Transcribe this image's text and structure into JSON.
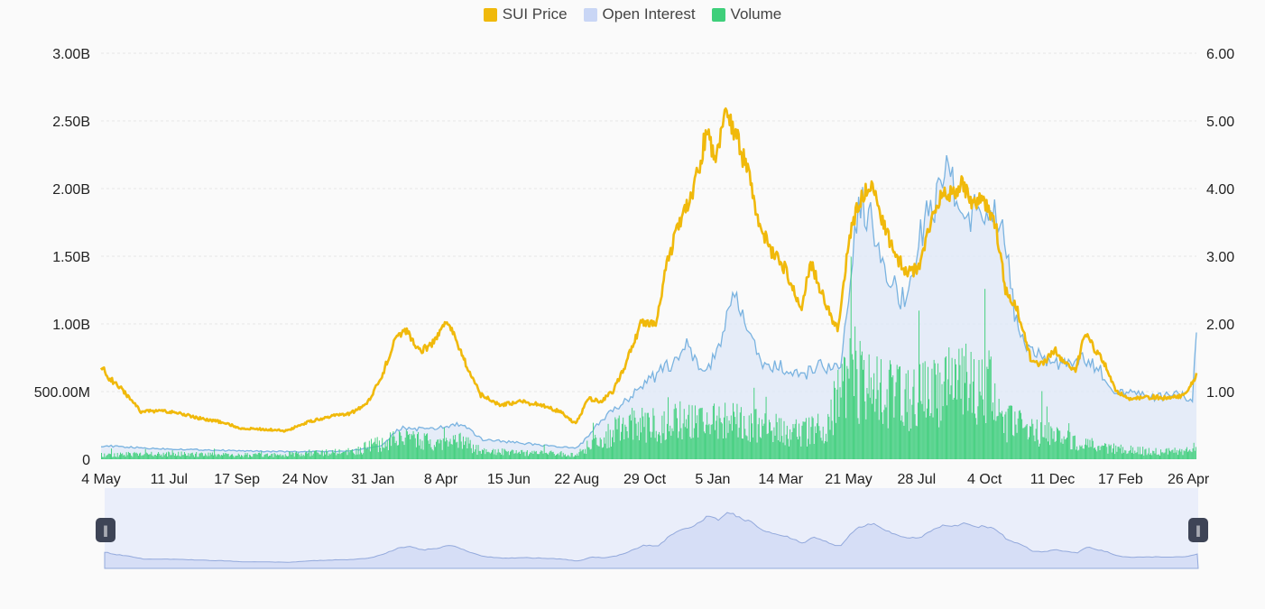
{
  "legend": {
    "price": {
      "label": "SUI Price",
      "color": "#f0b90b"
    },
    "oi": {
      "label": "Open Interest",
      "color": "#c9d6f5"
    },
    "volume": {
      "label": "Volume",
      "color": "#3ecf7a"
    }
  },
  "chart_data": {
    "type": "line",
    "legend_position": "top-center",
    "grid": true,
    "y_left": {
      "ylim": [
        0,
        3000000000
      ],
      "ticks": [
        0,
        500000000,
        1000000000,
        1500000000,
        2000000000,
        2500000000,
        3000000000
      ],
      "tick_labels": [
        "0",
        "500.00M",
        "1.00B",
        "1.50B",
        "2.00B",
        "2.50B",
        "3.00B"
      ]
    },
    "y_right": {
      "ylim": [
        0,
        6
      ],
      "ticks": [
        1,
        2,
        3,
        4,
        5,
        6
      ],
      "tick_labels": [
        "1.00",
        "2.00",
        "3.00",
        "4.00",
        "5.00",
        "6.00"
      ]
    },
    "x_tick_labels": [
      "4 May",
      "11 Jul",
      "17 Sep",
      "24 Nov",
      "31 Jan",
      "8 Apr",
      "15 Jun",
      "22 Aug",
      "29 Oct",
      "5 Jan",
      "14 Mar",
      "21 May",
      "28 Jul",
      "4 Oct",
      "11 Dec",
      "17 Feb",
      "26 Apr"
    ],
    "x_tick_steps": [
      0,
      68,
      136,
      204,
      272,
      340,
      408,
      476,
      544,
      612,
      680,
      748,
      816,
      884,
      952,
      1020,
      1088
    ],
    "x_total_steps": 1096,
    "series": [
      {
        "name": "SUI Price",
        "axis": "right",
        "type": "line",
        "color": "#f0b90b",
        "points": [
          [
            0,
            1.4
          ],
          [
            8,
            1.2
          ],
          [
            20,
            1.05
          ],
          [
            40,
            0.7
          ],
          [
            60,
            0.72
          ],
          [
            80,
            0.68
          ],
          [
            100,
            0.6
          ],
          [
            120,
            0.55
          ],
          [
            140,
            0.46
          ],
          [
            165,
            0.44
          ],
          [
            185,
            0.42
          ],
          [
            205,
            0.54
          ],
          [
            225,
            0.62
          ],
          [
            250,
            0.68
          ],
          [
            265,
            0.8
          ],
          [
            280,
            1.2
          ],
          [
            295,
            1.78
          ],
          [
            305,
            1.9
          ],
          [
            320,
            1.6
          ],
          [
            335,
            1.75
          ],
          [
            345,
            2.05
          ],
          [
            355,
            1.8
          ],
          [
            365,
            1.4
          ],
          [
            380,
            0.95
          ],
          [
            400,
            0.8
          ],
          [
            420,
            0.85
          ],
          [
            440,
            0.8
          ],
          [
            460,
            0.7
          ],
          [
            475,
            0.52
          ],
          [
            488,
            0.9
          ],
          [
            500,
            0.85
          ],
          [
            512,
            1.0
          ],
          [
            525,
            1.4
          ],
          [
            540,
            2.0
          ],
          [
            555,
            2.0
          ],
          [
            565,
            2.8
          ],
          [
            578,
            3.5
          ],
          [
            592,
            3.9
          ],
          [
            605,
            4.8
          ],
          [
            615,
            4.5
          ],
          [
            625,
            5.1
          ],
          [
            635,
            4.8
          ],
          [
            648,
            4.2
          ],
          [
            658,
            3.5
          ],
          [
            670,
            3.1
          ],
          [
            685,
            2.8
          ],
          [
            700,
            2.2
          ],
          [
            710,
            2.9
          ],
          [
            725,
            2.3
          ],
          [
            737,
            1.9
          ],
          [
            748,
            3.2
          ],
          [
            758,
            3.8
          ],
          [
            770,
            4.1
          ],
          [
            782,
            3.5
          ],
          [
            795,
            3.0
          ],
          [
            805,
            2.8
          ],
          [
            818,
            2.8
          ],
          [
            830,
            3.5
          ],
          [
            842,
            4.0
          ],
          [
            852,
            3.9
          ],
          [
            862,
            4.1
          ],
          [
            872,
            3.8
          ],
          [
            885,
            3.8
          ],
          [
            895,
            3.5
          ],
          [
            905,
            2.5
          ],
          [
            915,
            2.3
          ],
          [
            930,
            1.5
          ],
          [
            940,
            1.4
          ],
          [
            955,
            1.6
          ],
          [
            965,
            1.4
          ],
          [
            975,
            1.3
          ],
          [
            985,
            1.9
          ],
          [
            995,
            1.6
          ],
          [
            1005,
            1.4
          ],
          [
            1015,
            1.0
          ],
          [
            1030,
            0.9
          ],
          [
            1050,
            0.92
          ],
          [
            1070,
            0.9
          ],
          [
            1085,
            0.95
          ],
          [
            1096,
            1.25
          ]
        ]
      },
      {
        "name": "Open Interest",
        "axis": "left",
        "type": "area",
        "color": "#7ab3e0",
        "points": [
          [
            0,
            100000000
          ],
          [
            50,
            80000000
          ],
          [
            100,
            70000000
          ],
          [
            150,
            60000000
          ],
          [
            200,
            55000000
          ],
          [
            250,
            60000000
          ],
          [
            280,
            100000000
          ],
          [
            300,
            230000000
          ],
          [
            330,
            220000000
          ],
          [
            360,
            260000000
          ],
          [
            380,
            150000000
          ],
          [
            420,
            120000000
          ],
          [
            460,
            90000000
          ],
          [
            475,
            80000000
          ],
          [
            488,
            170000000
          ],
          [
            500,
            280000000
          ],
          [
            520,
            400000000
          ],
          [
            540,
            550000000
          ],
          [
            555,
            620000000
          ],
          [
            570,
            700000000
          ],
          [
            585,
            850000000
          ],
          [
            600,
            650000000
          ],
          [
            610,
            700000000
          ],
          [
            625,
            1000000000
          ],
          [
            635,
            1200000000
          ],
          [
            645,
            1000000000
          ],
          [
            660,
            700000000
          ],
          [
            680,
            680000000
          ],
          [
            700,
            600000000
          ],
          [
            720,
            700000000
          ],
          [
            740,
            650000000
          ],
          [
            748,
            1200000000
          ],
          [
            758,
            1900000000
          ],
          [
            770,
            1800000000
          ],
          [
            782,
            1500000000
          ],
          [
            795,
            1250000000
          ],
          [
            805,
            1150000000
          ],
          [
            815,
            1500000000
          ],
          [
            825,
            1800000000
          ],
          [
            835,
            1900000000
          ],
          [
            848,
            2200000000
          ],
          [
            858,
            1850000000
          ],
          [
            870,
            1800000000
          ],
          [
            880,
            1900000000
          ],
          [
            890,
            1800000000
          ],
          [
            900,
            1800000000
          ],
          [
            908,
            1400000000
          ],
          [
            918,
            900000000
          ],
          [
            935,
            800000000
          ],
          [
            950,
            700000000
          ],
          [
            965,
            700000000
          ],
          [
            980,
            750000000
          ],
          [
            1000,
            650000000
          ],
          [
            1015,
            500000000
          ],
          [
            1035,
            480000000
          ],
          [
            1055,
            460000000
          ],
          [
            1080,
            470000000
          ],
          [
            1092,
            450000000
          ],
          [
            1096,
            950000000
          ]
        ]
      },
      {
        "name": "Volume",
        "axis": "left",
        "type": "bar",
        "color": "#3ecf7a",
        "points": [
          [
            0,
            30000000
          ],
          [
            50,
            40000000
          ],
          [
            100,
            35000000
          ],
          [
            150,
            30000000
          ],
          [
            200,
            40000000
          ],
          [
            250,
            55000000
          ],
          [
            280,
            120000000
          ],
          [
            300,
            150000000
          ],
          [
            330,
            120000000
          ],
          [
            360,
            130000000
          ],
          [
            380,
            60000000
          ],
          [
            420,
            45000000
          ],
          [
            460,
            40000000
          ],
          [
            475,
            30000000
          ],
          [
            488,
            100000000
          ],
          [
            500,
            150000000
          ],
          [
            520,
            240000000
          ],
          [
            540,
            260000000
          ],
          [
            560,
            250000000
          ],
          [
            580,
            280000000
          ],
          [
            600,
            250000000
          ],
          [
            625,
            300000000
          ],
          [
            645,
            260000000
          ],
          [
            665,
            230000000
          ],
          [
            685,
            210000000
          ],
          [
            705,
            200000000
          ],
          [
            725,
            260000000
          ],
          [
            748,
            600000000
          ],
          [
            770,
            550000000
          ],
          [
            790,
            500000000
          ],
          [
            810,
            420000000
          ],
          [
            830,
            500000000
          ],
          [
            850,
            550000000
          ],
          [
            870,
            560000000
          ],
          [
            890,
            520000000
          ],
          [
            905,
            280000000
          ],
          [
            930,
            200000000
          ],
          [
            950,
            180000000
          ],
          [
            970,
            130000000
          ],
          [
            990,
            110000000
          ],
          [
            1010,
            80000000
          ],
          [
            1040,
            60000000
          ],
          [
            1070,
            55000000
          ],
          [
            1090,
            60000000
          ],
          [
            1096,
            100000000
          ]
        ]
      }
    ]
  }
}
